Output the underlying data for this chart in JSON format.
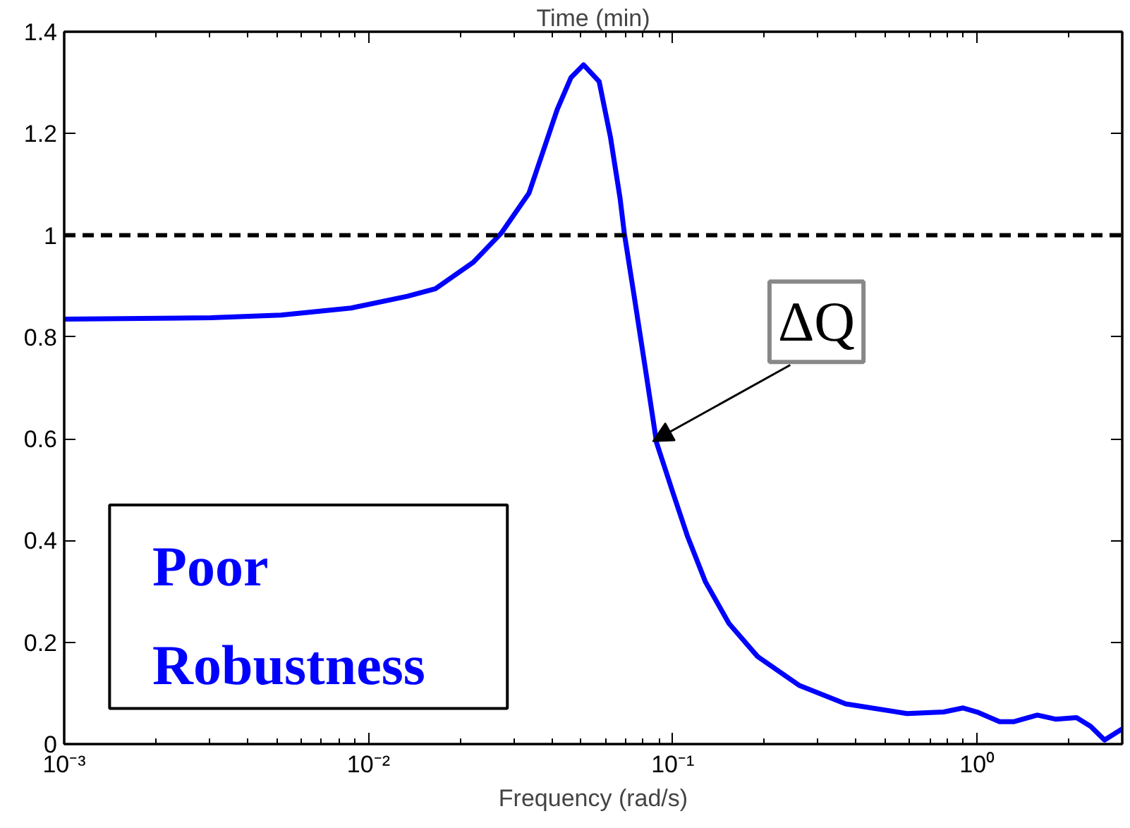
{
  "chart_data": {
    "type": "line",
    "title": "Time (min)",
    "xlabel": "Frequency (rad/s)",
    "log": "x",
    "grid": false,
    "marker": "none",
    "line_style": "solid",
    "xlim": [
      0.001,
      3.0
    ],
    "ylim": [
      0,
      1.4
    ],
    "xticks": [
      {
        "value": 0.001,
        "label": "10⁻³"
      },
      {
        "value": 0.01,
        "label": "10⁻²"
      },
      {
        "value": 0.1,
        "label": "10⁻¹"
      },
      {
        "value": 1,
        "label": "10⁰"
      }
    ],
    "yticks": [
      0,
      0.2,
      0.4,
      0.6,
      0.8,
      1,
      1.2,
      1.4
    ],
    "series": [
      {
        "color": "#0000ff",
        "x": [
          0.001,
          0.00304,
          0.00516,
          0.00877,
          0.0134,
          0.0166,
          0.0221,
          0.0273,
          0.0337,
          0.0417,
          0.0463,
          0.0509,
          0.0573,
          0.0624,
          0.0671,
          0.0693,
          0.0746,
          0.0813,
          0.0885,
          0.1005,
          0.1117,
          0.128,
          0.153,
          0.19,
          0.261,
          0.37,
          0.589,
          0.776,
          0.9,
          1.0,
          1.186,
          1.318,
          1.578,
          1.811,
          2.123,
          2.36,
          2.624,
          3.0
        ],
        "values": [
          0.835,
          0.838,
          0.843,
          0.857,
          0.88,
          0.895,
          0.947,
          1.004,
          1.083,
          1.247,
          1.31,
          1.335,
          1.302,
          1.193,
          1.073,
          1.004,
          0.882,
          0.737,
          0.592,
          0.491,
          0.409,
          0.319,
          0.237,
          0.172,
          0.115,
          0.079,
          0.06,
          0.063,
          0.071,
          0.063,
          0.044,
          0.044,
          0.057,
          0.049,
          0.052,
          0.035,
          0.008,
          0.03
        ]
      }
    ],
    "ref_lines": [
      {
        "axis": "y",
        "value": 1,
        "color": "#000000",
        "line_style": "dashed"
      }
    ],
    "annotations": [
      {
        "text": "ΔQ",
        "x": 0.086,
        "y": 0.595
      },
      "Poor Robustness"
    ]
  }
}
